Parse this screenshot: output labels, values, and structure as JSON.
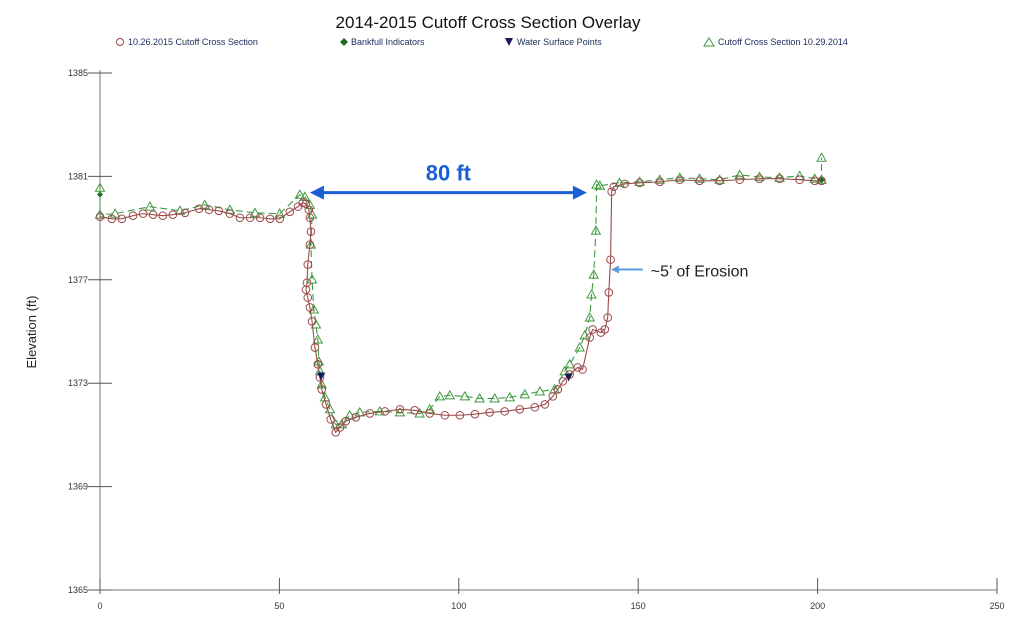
{
  "chart_data": {
    "type": "scatter",
    "title": "2014-2015 Cutoff Cross Section Overlay",
    "xlabel": "",
    "ylabel": "Elevation (ft)",
    "xlim": [
      0,
      250
    ],
    "ylim": [
      1365,
      1385
    ],
    "x_ticks": [
      0,
      50,
      100,
      150,
      200,
      250
    ],
    "y_ticks": [
      1385,
      1381,
      1377,
      1373,
      1369,
      1365
    ],
    "grid": false,
    "legend_position": "top",
    "legend": [
      {
        "label": "10.26.2015 Cutoff Cross Section",
        "marker": "circle",
        "color": "#9b4a4a"
      },
      {
        "label": "Bankfull Indicators",
        "marker": "diamond",
        "color": "#1f6b1f"
      },
      {
        "label": "Water Surface Points",
        "marker": "triangle-down",
        "color": "#141a5c"
      },
      {
        "label": "Cutoff Cross Section 10.29.2014",
        "marker": "triangle",
        "color": "#3f9a3f"
      }
    ],
    "series": [
      {
        "name": "10.26.2015 Cutoff Cross Section",
        "color": "#9b4a4a",
        "marker": "circle",
        "line": "solid",
        "points": [
          [
            0,
            1379.44
          ],
          [
            3.3,
            1379.36
          ],
          [
            6.1,
            1379.36
          ],
          [
            9.2,
            1379.48
          ],
          [
            12.0,
            1379.56
          ],
          [
            14.8,
            1379.52
          ],
          [
            17.5,
            1379.48
          ],
          [
            20.3,
            1379.52
          ],
          [
            23.7,
            1379.59
          ],
          [
            27.6,
            1379.75
          ],
          [
            30.4,
            1379.71
          ],
          [
            33.1,
            1379.67
          ],
          [
            36.2,
            1379.56
          ],
          [
            39.0,
            1379.4
          ],
          [
            41.8,
            1379.4
          ],
          [
            44.6,
            1379.4
          ],
          [
            47.4,
            1379.36
          ],
          [
            50.1,
            1379.36
          ],
          [
            52.9,
            1379.63
          ],
          [
            55.2,
            1379.83
          ],
          [
            56.5,
            1379.98
          ],
          [
            57.4,
            1379.94
          ],
          [
            58.2,
            1379.71
          ],
          [
            58.5,
            1379.4
          ],
          [
            58.8,
            1378.86
          ],
          [
            58.5,
            1378.36
          ],
          [
            57.9,
            1377.59
          ],
          [
            57.7,
            1376.89
          ],
          [
            57.4,
            1376.62
          ],
          [
            57.9,
            1376.31
          ],
          [
            58.5,
            1375.93
          ],
          [
            59.1,
            1375.39
          ],
          [
            59.9,
            1374.38
          ],
          [
            60.7,
            1373.73
          ],
          [
            61.3,
            1373.22
          ],
          [
            61.8,
            1372.76
          ],
          [
            63.0,
            1372.18
          ],
          [
            64.3,
            1371.6
          ],
          [
            65.7,
            1371.1
          ],
          [
            66.9,
            1371.29
          ],
          [
            68.5,
            1371.53
          ],
          [
            71.3,
            1371.68
          ],
          [
            75.2,
            1371.83
          ],
          [
            79.4,
            1371.91
          ],
          [
            83.6,
            1371.99
          ],
          [
            87.7,
            1371.95
          ],
          [
            91.9,
            1371.83
          ],
          [
            96.1,
            1371.76
          ],
          [
            100.3,
            1371.76
          ],
          [
            104.5,
            1371.8
          ],
          [
            108.6,
            1371.87
          ],
          [
            112.8,
            1371.91
          ],
          [
            117.0,
            1371.99
          ],
          [
            121.2,
            1372.07
          ],
          [
            124.0,
            1372.18
          ],
          [
            126.2,
            1372.49
          ],
          [
            127.6,
            1372.76
          ],
          [
            129.0,
            1373.07
          ],
          [
            130.9,
            1373.34
          ],
          [
            133.1,
            1373.61
          ],
          [
            134.5,
            1373.53
          ],
          [
            136.5,
            1374.77
          ],
          [
            137.3,
            1375.08
          ],
          [
            139.6,
            1374.96
          ],
          [
            140.7,
            1375.08
          ],
          [
            141.5,
            1375.54
          ],
          [
            141.8,
            1376.51
          ],
          [
            142.3,
            1377.78
          ],
          [
            142.6,
            1380.41
          ],
          [
            143.2,
            1380.6
          ],
          [
            146.2,
            1380.71
          ],
          [
            150.4,
            1380.75
          ],
          [
            156.0,
            1380.79
          ],
          [
            161.6,
            1380.87
          ],
          [
            167.1,
            1380.83
          ],
          [
            172.7,
            1380.83
          ],
          [
            178.3,
            1380.87
          ],
          [
            183.8,
            1380.91
          ],
          [
            189.4,
            1380.91
          ],
          [
            195.0,
            1380.87
          ],
          [
            199.2,
            1380.83
          ],
          [
            201.1,
            1380.83
          ]
        ]
      },
      {
        "name": "Cutoff Cross Section 10.29.2014",
        "color": "#3f9a3f",
        "marker": "triangle",
        "line": "dashed",
        "points": [
          [
            0,
            1380.56
          ],
          [
            0,
            1379.52
          ],
          [
            4.2,
            1379.56
          ],
          [
            13.9,
            1379.83
          ],
          [
            22.3,
            1379.67
          ],
          [
            29.2,
            1379.9
          ],
          [
            36.2,
            1379.71
          ],
          [
            43.2,
            1379.59
          ],
          [
            50.1,
            1379.56
          ],
          [
            55.7,
            1380.29
          ],
          [
            57.1,
            1380.21
          ],
          [
            58.5,
            1379.9
          ],
          [
            59.1,
            1379.52
          ],
          [
            58.8,
            1378.36
          ],
          [
            59.1,
            1377.01
          ],
          [
            59.6,
            1375.85
          ],
          [
            60.2,
            1375.27
          ],
          [
            60.7,
            1374.69
          ],
          [
            61.0,
            1373.84
          ],
          [
            61.3,
            1373.46
          ],
          [
            61.8,
            1372.95
          ],
          [
            62.7,
            1372.45
          ],
          [
            64.1,
            1371.99
          ],
          [
            65.7,
            1371.41
          ],
          [
            67.4,
            1371.41
          ],
          [
            69.6,
            1371.76
          ],
          [
            72.4,
            1371.87
          ],
          [
            78.0,
            1371.91
          ],
          [
            83.6,
            1371.87
          ],
          [
            89.1,
            1371.83
          ],
          [
            91.9,
            1371.99
          ],
          [
            94.7,
            1372.49
          ],
          [
            97.5,
            1372.53
          ],
          [
            101.7,
            1372.49
          ],
          [
            105.8,
            1372.41
          ],
          [
            110.0,
            1372.41
          ],
          [
            114.2,
            1372.45
          ],
          [
            118.4,
            1372.57
          ],
          [
            122.6,
            1372.68
          ],
          [
            126.7,
            1372.76
          ],
          [
            129.5,
            1373.46
          ],
          [
            130.9,
            1373.73
          ],
          [
            133.7,
            1374.38
          ],
          [
            135.1,
            1374.85
          ],
          [
            136.5,
            1375.54
          ],
          [
            137.0,
            1376.43
          ],
          [
            137.6,
            1377.2
          ],
          [
            138.2,
            1378.9
          ],
          [
            138.4,
            1380.68
          ],
          [
            139.3,
            1380.64
          ],
          [
            144.8,
            1380.75
          ],
          [
            150.4,
            1380.79
          ],
          [
            156.0,
            1380.87
          ],
          [
            161.6,
            1380.95
          ],
          [
            167.1,
            1380.91
          ],
          [
            172.7,
            1380.87
          ],
          [
            178.3,
            1381.06
          ],
          [
            183.8,
            1380.98
          ],
          [
            189.4,
            1380.95
          ],
          [
            195.0,
            1381.02
          ],
          [
            199.2,
            1380.91
          ],
          [
            201.1,
            1380.87
          ],
          [
            201.1,
            1381.72
          ]
        ]
      },
      {
        "name": "Water Surface Points",
        "color": "#141a5c",
        "marker": "triangle-down",
        "line": "none",
        "points": [
          [
            61.6,
            1373.26
          ],
          [
            130.6,
            1373.22
          ]
        ]
      },
      {
        "name": "Bankfull Indicators",
        "color": "#1f6b1f",
        "marker": "diamond",
        "line": "none",
        "points": [
          [
            0,
            1380.3
          ],
          [
            201.1,
            1380.85
          ]
        ]
      }
    ],
    "annotations": [
      {
        "text": "80 ft",
        "color": "#1a5fd6",
        "arrow": "double",
        "from": [
          58.5,
          1380.37
        ],
        "to": [
          135.7,
          1380.37
        ]
      },
      {
        "text": "~5’ of Erosion",
        "color": "#222222",
        "arrow_color": "#5b9be0",
        "arrow": "single",
        "from": [
          153.5,
          1377.4
        ],
        "to": [
          142.4,
          1377.4
        ]
      }
    ]
  }
}
